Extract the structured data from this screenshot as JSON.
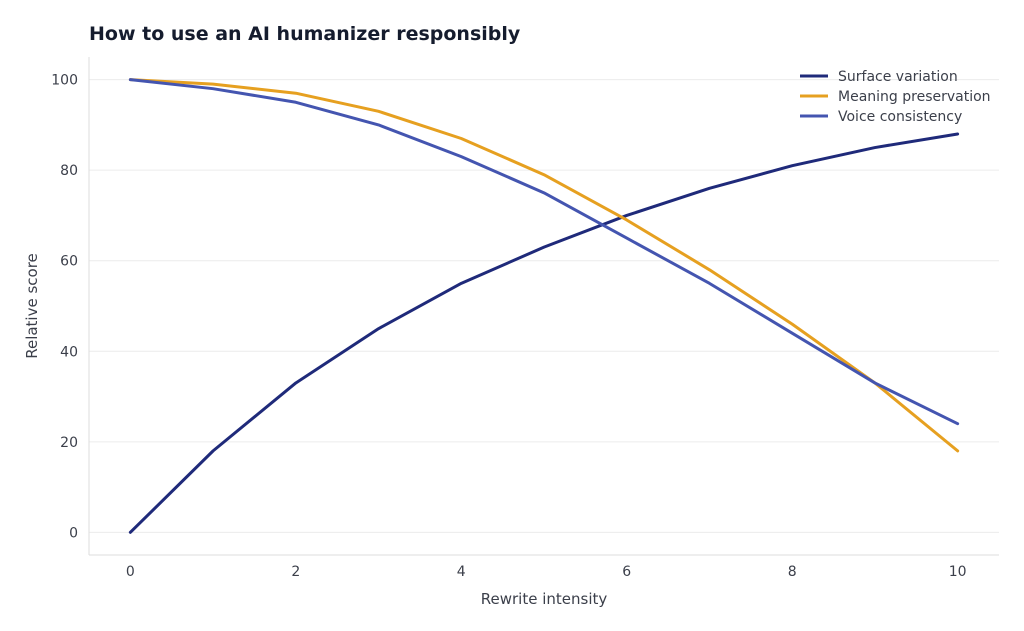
{
  "chart_data": {
    "type": "line",
    "title": "How to use an AI humanizer responsibly",
    "xlabel": "Rewrite intensity",
    "ylabel": "Relative score",
    "x": [
      0,
      1,
      2,
      3,
      4,
      5,
      6,
      7,
      8,
      9,
      10
    ],
    "xlim": [
      -0.5,
      10.5
    ],
    "ylim": [
      -5,
      105
    ],
    "xticks": [
      0,
      2,
      4,
      6,
      8,
      10
    ],
    "yticks": [
      0,
      20,
      40,
      60,
      80,
      100
    ],
    "grid": "horizontal",
    "legend_position": "top-right",
    "series": [
      {
        "name": "Surface variation",
        "color": "#1f2a7a",
        "values": [
          0,
          18,
          33,
          45,
          55,
          63,
          70,
          76,
          81,
          85,
          88
        ]
      },
      {
        "name": "Meaning preservation",
        "color": "#e6a020",
        "values": [
          100,
          99,
          97,
          93,
          87,
          79,
          69,
          58,
          46,
          33,
          18
        ]
      },
      {
        "name": "Voice consistency",
        "color": "#4455b0",
        "values": [
          100,
          98,
          95,
          90,
          83,
          75,
          65,
          55,
          44,
          33,
          24
        ]
      }
    ]
  }
}
